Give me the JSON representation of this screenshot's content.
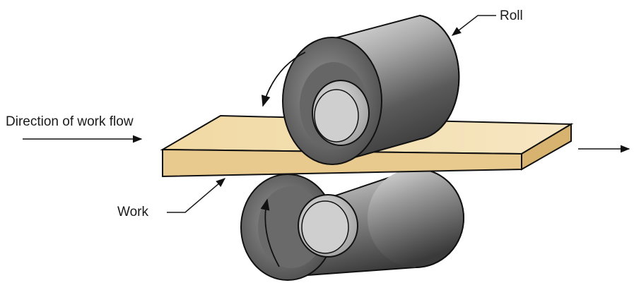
{
  "labels": {
    "roll": "Roll",
    "direction": "Direction of work flow",
    "work": "Work"
  },
  "colors": {
    "roll_dark": "#4a4a4a",
    "roll_mid": "#8c8c8c",
    "roll_light": "#d9d9d9",
    "work_top": "#f3dfb0",
    "work_front": "#e9cb8f",
    "work_side": "#d9b574",
    "outline": "#111111"
  }
}
